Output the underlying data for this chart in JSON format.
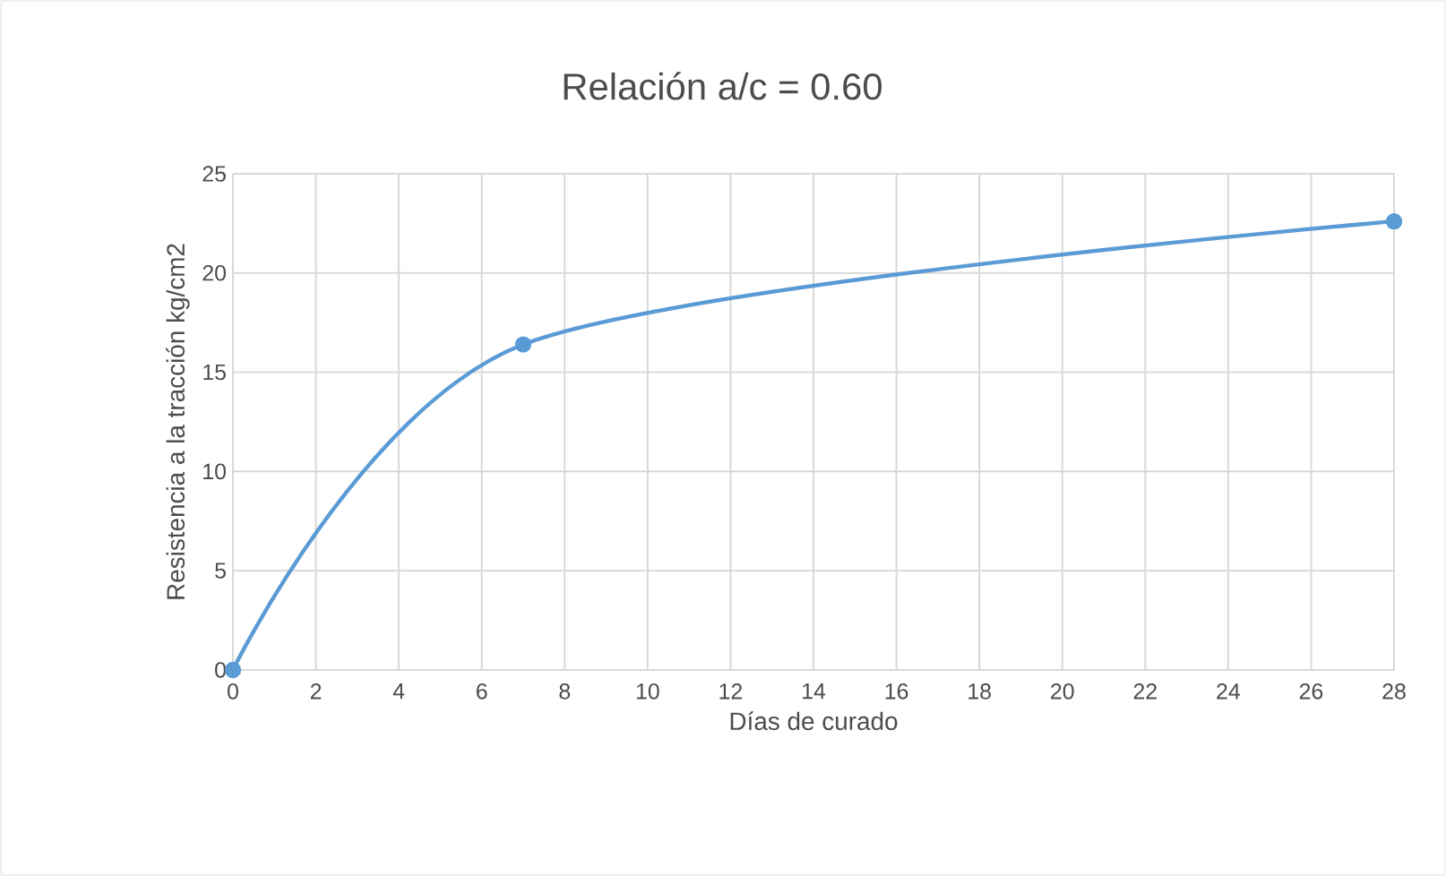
{
  "chart_data": {
    "type": "line",
    "title": "Relación a/c = 0.60",
    "xlabel": "Días de curado",
    "ylabel": "Resistencia a la tracción kg/cm2",
    "x": [
      0,
      7,
      28
    ],
    "values": [
      0,
      16.4,
      22.6
    ],
    "color": "#5b9bd5",
    "marker": "circle",
    "xlim": [
      0,
      28
    ],
    "xticks": [
      0,
      2,
      4,
      6,
      8,
      10,
      12,
      14,
      16,
      18,
      20,
      22,
      24,
      26,
      28
    ],
    "ylim": [
      0,
      25
    ],
    "yticks": [
      0,
      5,
      10,
      15,
      20,
      25
    ],
    "grid": true
  }
}
